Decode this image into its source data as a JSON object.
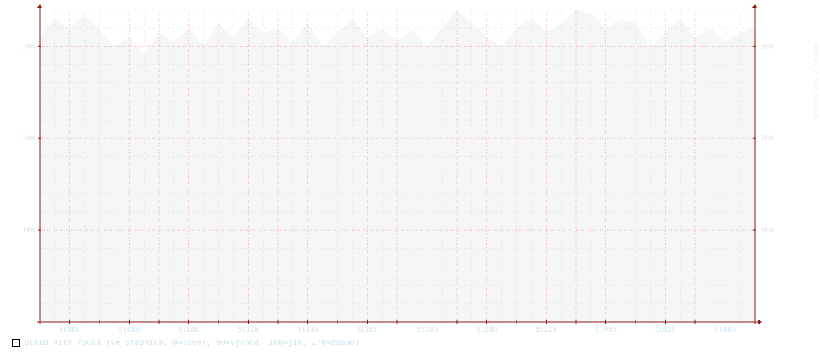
{
  "chart_data": {
    "type": "area",
    "legend": "Odkud vítr fouká (ve stupních, 0=sever, 90=východ, 180=jih, 270=západ)",
    "watermark": "RRDTOOL / TOBI OETIKER",
    "categories": [
      "St06h",
      "St08h",
      "St10h",
      "St12h",
      "St14h",
      "St16h",
      "St18h",
      "St20h",
      "St22h",
      "Čt00h",
      "Čt02h",
      "Čt04h"
    ],
    "ylim": [
      0,
      340
    ],
    "yticks": [
      100,
      200,
      300
    ],
    "x_hours": [
      5,
      29
    ],
    "grid": true,
    "colors": {
      "area": "#f6f6f6",
      "area_gap": "#ffffff",
      "major_grid": "#e6a0a0",
      "minor_grid": "#d8d8d8",
      "axis": "#8b1a1a",
      "text": "#cfe3ea"
    },
    "series": [
      {
        "values": [
          [
            5.0,
            310
          ],
          [
            5.5,
            330
          ],
          [
            6.0,
            320
          ],
          [
            6.5,
            335
          ],
          [
            7.0,
            318
          ],
          [
            7.5,
            300
          ],
          [
            8.0,
            310
          ],
          [
            8.5,
            290
          ],
          [
            9.0,
            315
          ],
          [
            9.5,
            305
          ],
          [
            10.0,
            320
          ],
          [
            10.5,
            300
          ],
          [
            11.0,
            325
          ],
          [
            11.5,
            310
          ],
          [
            12.0,
            330
          ],
          [
            12.5,
            315
          ],
          [
            13.0,
            320
          ],
          [
            13.5,
            305
          ],
          [
            14.0,
            325
          ],
          [
            14.5,
            300
          ],
          [
            15.0,
            315
          ],
          [
            15.5,
            330
          ],
          [
            16.0,
            310
          ],
          [
            16.5,
            320
          ],
          [
            17.0,
            305
          ],
          [
            17.5,
            318
          ],
          [
            18.0,
            300
          ],
          [
            18.5,
            320
          ],
          [
            19.0,
            340
          ],
          [
            19.5,
            325
          ],
          [
            20.0,
            310
          ],
          [
            20.5,
            300
          ],
          [
            21.0,
            320
          ],
          [
            21.5,
            330
          ],
          [
            22.0,
            315
          ],
          [
            22.5,
            325
          ],
          [
            23.0,
            340
          ],
          [
            23.5,
            335
          ],
          [
            24.0,
            320
          ],
          [
            24.5,
            330
          ],
          [
            25.0,
            325
          ],
          [
            25.5,
            300
          ],
          [
            26.0,
            315
          ],
          [
            26.5,
            330
          ],
          [
            27.0,
            310
          ],
          [
            27.5,
            320
          ],
          [
            28.0,
            305
          ],
          [
            28.5,
            315
          ],
          [
            29.0,
            320
          ]
        ]
      }
    ]
  }
}
